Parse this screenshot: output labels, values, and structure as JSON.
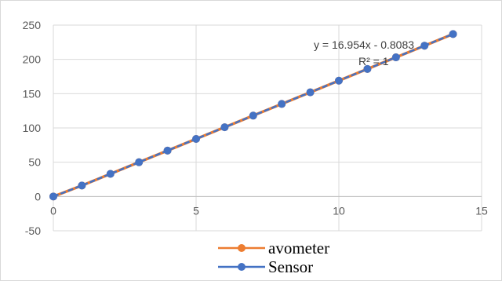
{
  "chart_data": {
    "type": "line",
    "title": "",
    "xlabel": "",
    "ylabel": "",
    "xlim": [
      0,
      15
    ],
    "ylim": [
      -50,
      250
    ],
    "x_ticks": [
      "0",
      "5",
      "10",
      "15"
    ],
    "y_ticks": [
      "-50",
      "0",
      "50",
      "100",
      "150",
      "200",
      "250"
    ],
    "grid": true,
    "legend_position": "bottom",
    "series": [
      {
        "name": "avometer",
        "color": "#ED7D31",
        "x": [
          0,
          1,
          2,
          3,
          4,
          5,
          6,
          7,
          8,
          9,
          10,
          11,
          12,
          13,
          14
        ],
        "y": [
          0,
          16,
          33,
          50,
          67,
          84,
          101,
          118,
          135,
          152,
          169,
          186,
          203,
          220,
          237
        ]
      },
      {
        "name": "Sensor",
        "color": "#4472C4",
        "x": [
          0,
          1,
          2,
          3,
          4,
          5,
          6,
          7,
          8,
          9,
          10,
          11,
          12,
          13,
          14
        ],
        "y": [
          0,
          16,
          33,
          50,
          67,
          84,
          101,
          118,
          135,
          152,
          169,
          186,
          203,
          220,
          237
        ]
      }
    ],
    "annotations": [
      "y = 16.954x - 0.8083",
      "R² = 1"
    ]
  }
}
